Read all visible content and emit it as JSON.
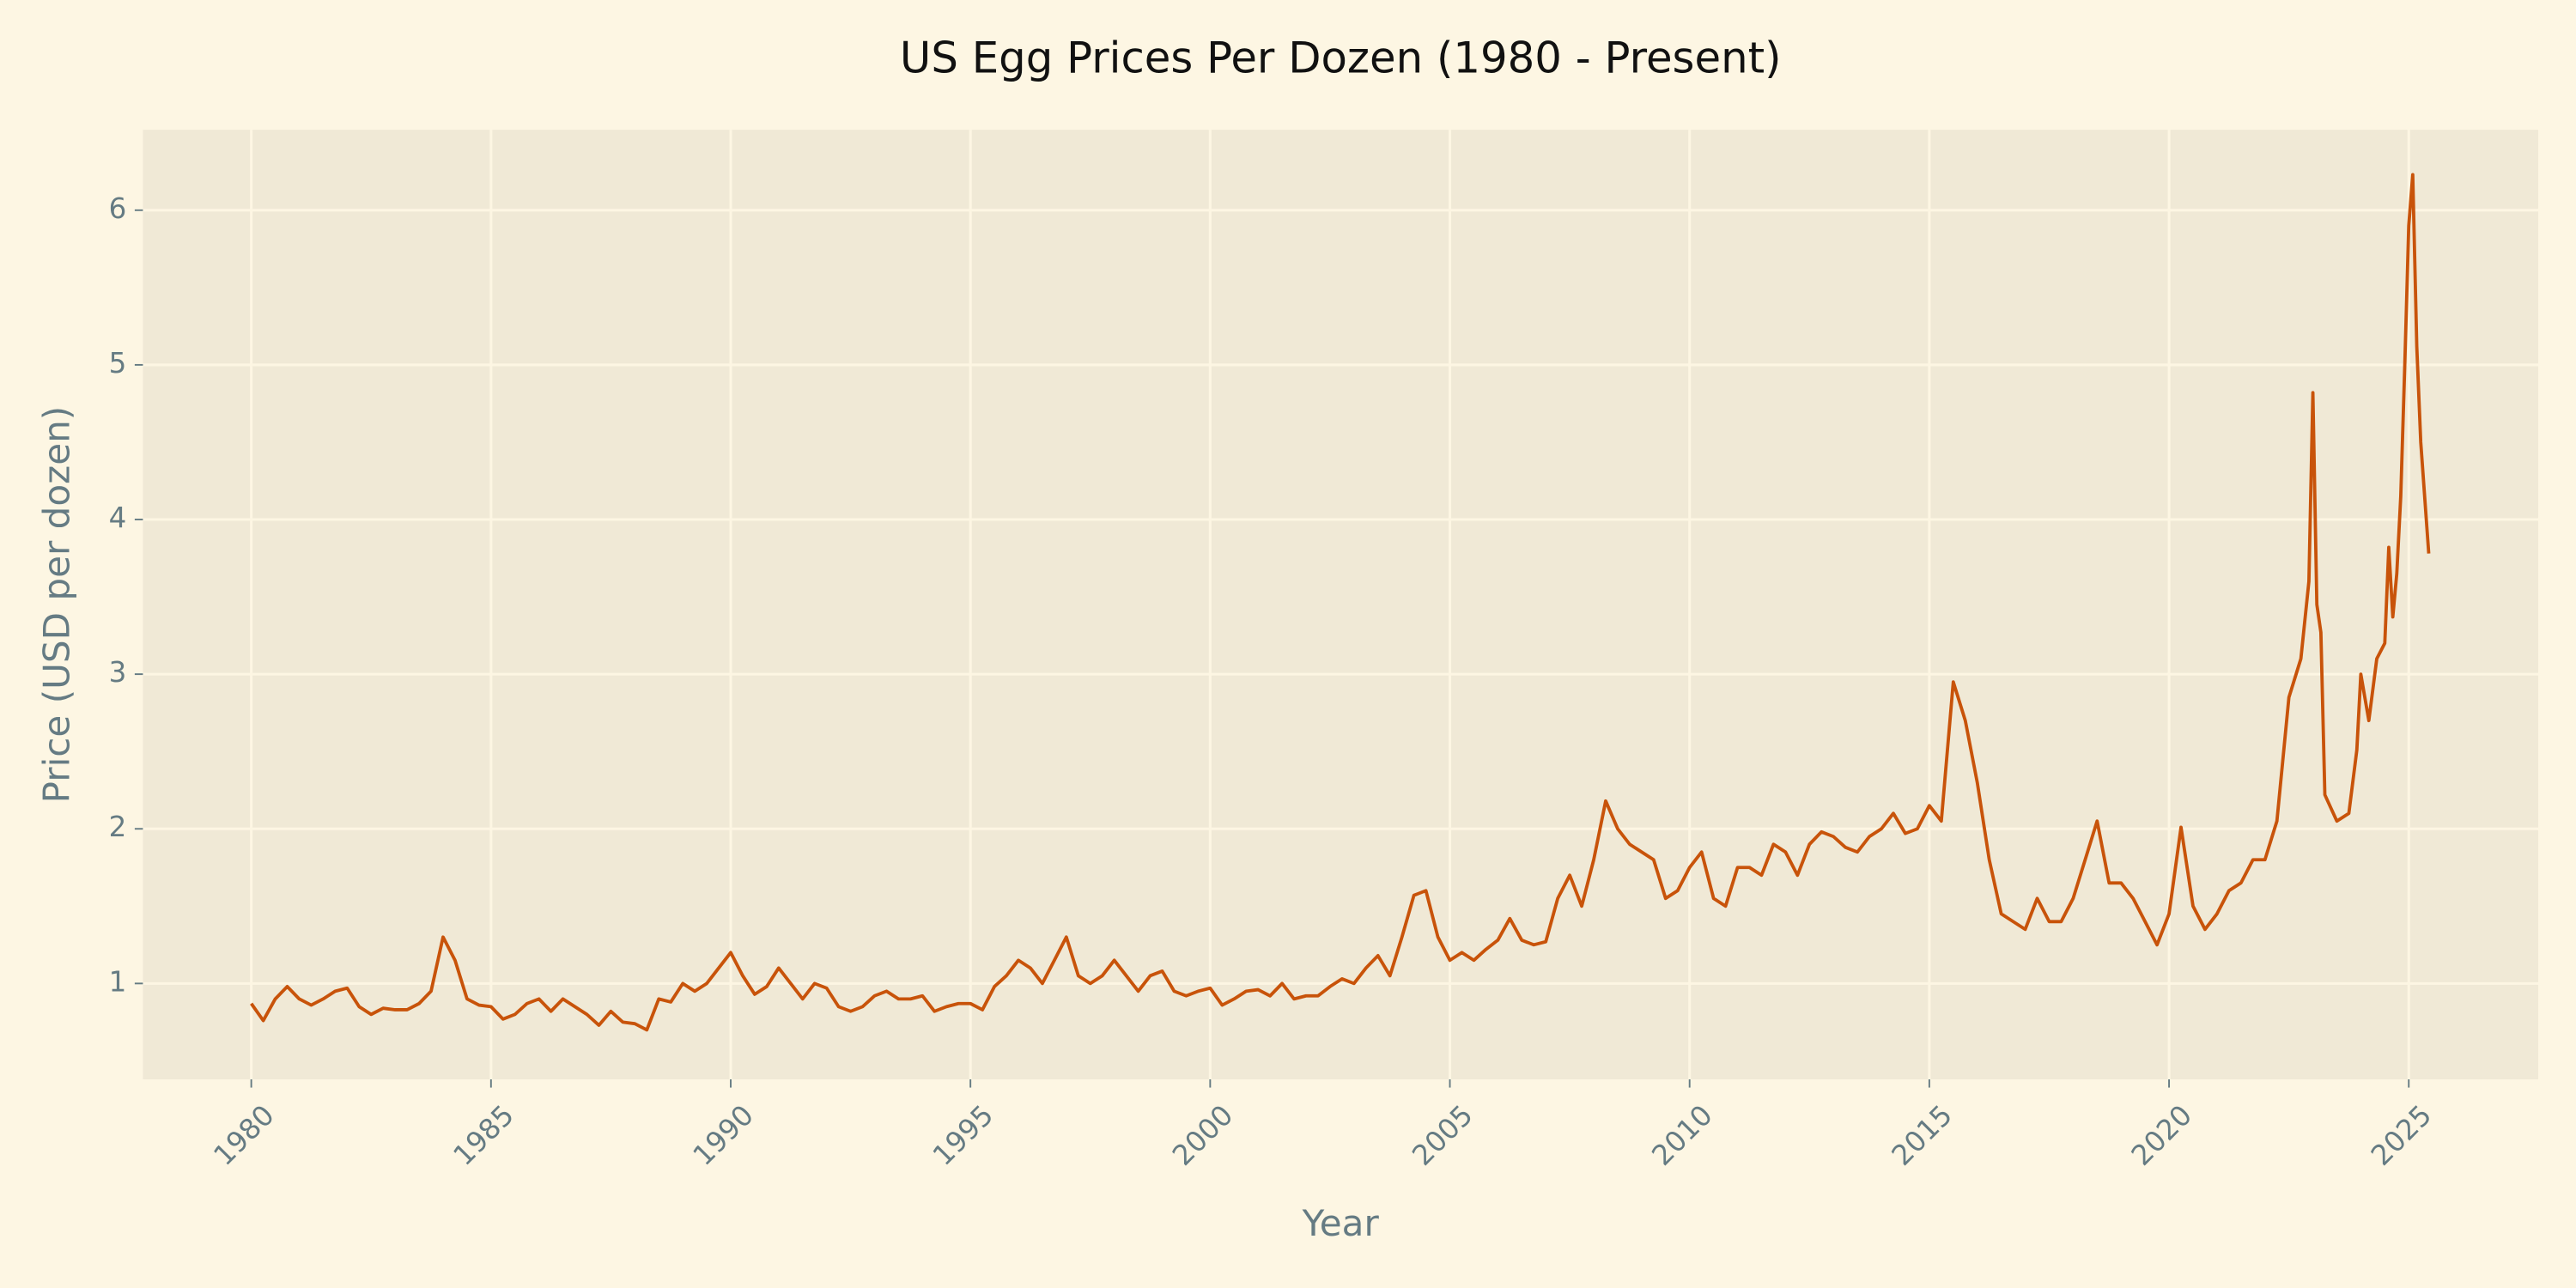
{
  "chart_data": {
    "type": "line",
    "title": "US Egg Prices Per Dozen (1980 - Present)",
    "xlabel": "Year",
    "ylabel": "Price (USD per dozen)",
    "xlim": [
      1977.74,
      2027.7
    ],
    "ylim": [
      0.38,
      6.52
    ],
    "xticks": [
      1980,
      1985,
      1990,
      1995,
      2000,
      2005,
      2010,
      2015,
      2020,
      2025
    ],
    "yticks": [
      1,
      2,
      3,
      4,
      5,
      6
    ],
    "grid": true,
    "x": [
      1980,
      1980.25,
      1980.5,
      1980.75,
      1981,
      1981.25,
      1981.5,
      1981.75,
      1982,
      1982.25,
      1982.5,
      1982.75,
      1983,
      1983.25,
      1983.5,
      1983.75,
      1984,
      1984.25,
      1984.5,
      1984.75,
      1985,
      1985.25,
      1985.5,
      1985.75,
      1986,
      1986.25,
      1986.5,
      1986.75,
      1987,
      1987.25,
      1987.5,
      1987.75,
      1988,
      1988.25,
      1988.5,
      1988.75,
      1989,
      1989.25,
      1989.5,
      1989.75,
      1990,
      1990.25,
      1990.5,
      1990.75,
      1991,
      1991.25,
      1991.5,
      1991.75,
      1992,
      1992.25,
      1992.5,
      1992.75,
      1993,
      1993.25,
      1993.5,
      1993.75,
      1994,
      1994.25,
      1994.5,
      1994.75,
      1995,
      1995.25,
      1995.5,
      1995.75,
      1996,
      1996.25,
      1996.5,
      1996.75,
      1997,
      1997.25,
      1997.5,
      1997.75,
      1998,
      1998.25,
      1998.5,
      1998.75,
      1999,
      1999.25,
      1999.5,
      1999.75,
      2000,
      2000.25,
      2000.5,
      2000.75,
      2001,
      2001.25,
      2001.5,
      2001.75,
      2002,
      2002.25,
      2002.5,
      2002.75,
      2003,
      2003.25,
      2003.5,
      2003.75,
      2004,
      2004.25,
      2004.5,
      2004.75,
      2005,
      2005.25,
      2005.5,
      2005.75,
      2006,
      2006.25,
      2006.5,
      2006.75,
      2007,
      2007.25,
      2007.5,
      2007.75,
      2008,
      2008.25,
      2008.5,
      2008.75,
      2009,
      2009.25,
      2009.5,
      2009.75,
      2010,
      2010.25,
      2010.5,
      2010.75,
      2011,
      2011.25,
      2011.5,
      2011.75,
      2012,
      2012.25,
      2012.5,
      2012.75,
      2013,
      2013.25,
      2013.5,
      2013.75,
      2014,
      2014.25,
      2014.5,
      2014.75,
      2015,
      2015.25,
      2015.5,
      2015.75,
      2016,
      2016.25,
      2016.5,
      2016.75,
      2017,
      2017.25,
      2017.5,
      2017.75,
      2018,
      2018.25,
      2018.5,
      2018.75,
      2019,
      2019.25,
      2019.5,
      2019.75,
      2020,
      2020.25,
      2020.5,
      2020.75,
      2021,
      2021.25,
      2021.5,
      2021.75,
      2022,
      2022.25,
      2022.5,
      2022.75,
      2022.917,
      2023,
      2023.083,
      2023.167,
      2023.25,
      2023.5,
      2023.75,
      2023.917,
      2024,
      2024.167,
      2024.333,
      2024.5,
      2024.583,
      2024.667,
      2024.75,
      2024.833,
      2024.917,
      2025,
      2025.083,
      2025.167,
      2025.25,
      2025.417
    ],
    "series": [
      {
        "color": "#c8530a",
        "values": [
          0.87,
          0.76,
          0.9,
          0.98,
          0.9,
          0.86,
          0.9,
          0.95,
          0.97,
          0.85,
          0.8,
          0.84,
          0.83,
          0.83,
          0.87,
          0.95,
          1.3,
          1.15,
          0.9,
          0.86,
          0.85,
          0.77,
          0.8,
          0.87,
          0.9,
          0.82,
          0.9,
          0.85,
          0.8,
          0.73,
          0.82,
          0.75,
          0.74,
          0.7,
          0.9,
          0.88,
          1.0,
          0.95,
          1.0,
          1.1,
          1.2,
          1.05,
          0.93,
          0.98,
          1.1,
          1.0,
          0.9,
          1.0,
          0.97,
          0.85,
          0.82,
          0.85,
          0.92,
          0.95,
          0.9,
          0.9,
          0.92,
          0.82,
          0.85,
          0.87,
          0.87,
          0.83,
          0.98,
          1.05,
          1.15,
          1.1,
          1.0,
          1.15,
          1.3,
          1.05,
          1.0,
          1.05,
          1.15,
          1.05,
          0.95,
          1.05,
          1.08,
          0.95,
          0.92,
          0.95,
          0.97,
          0.86,
          0.9,
          0.95,
          0.96,
          0.92,
          1.0,
          0.9,
          0.92,
          0.92,
          0.98,
          1.03,
          1.0,
          1.1,
          1.18,
          1.05,
          1.3,
          1.57,
          1.6,
          1.3,
          1.15,
          1.2,
          1.15,
          1.22,
          1.28,
          1.42,
          1.28,
          1.25,
          1.27,
          1.55,
          1.7,
          1.5,
          1.8,
          2.18,
          2.0,
          1.9,
          1.85,
          1.8,
          1.55,
          1.6,
          1.75,
          1.85,
          1.55,
          1.5,
          1.75,
          1.75,
          1.7,
          1.9,
          1.85,
          1.7,
          1.9,
          1.98,
          1.95,
          1.88,
          1.85,
          1.95,
          2.0,
          2.1,
          1.97,
          2.0,
          2.15,
          2.05,
          2.95,
          2.7,
          2.3,
          1.8,
          1.45,
          1.4,
          1.35,
          1.55,
          1.4,
          1.4,
          1.55,
          1.8,
          2.05,
          1.65,
          1.65,
          1.55,
          1.4,
          1.25,
          1.45,
          2.01,
          1.5,
          1.35,
          1.45,
          1.6,
          1.65,
          1.8,
          1.8,
          2.05,
          2.85,
          3.1,
          3.6,
          4.82,
          3.45,
          3.27,
          2.22,
          2.05,
          2.1,
          2.51,
          3.0,
          2.7,
          3.1,
          3.2,
          3.82,
          3.37,
          3.65,
          4.15,
          5.0,
          5.9,
          6.23,
          5.12,
          4.5,
          3.78
        ]
      }
    ]
  }
}
